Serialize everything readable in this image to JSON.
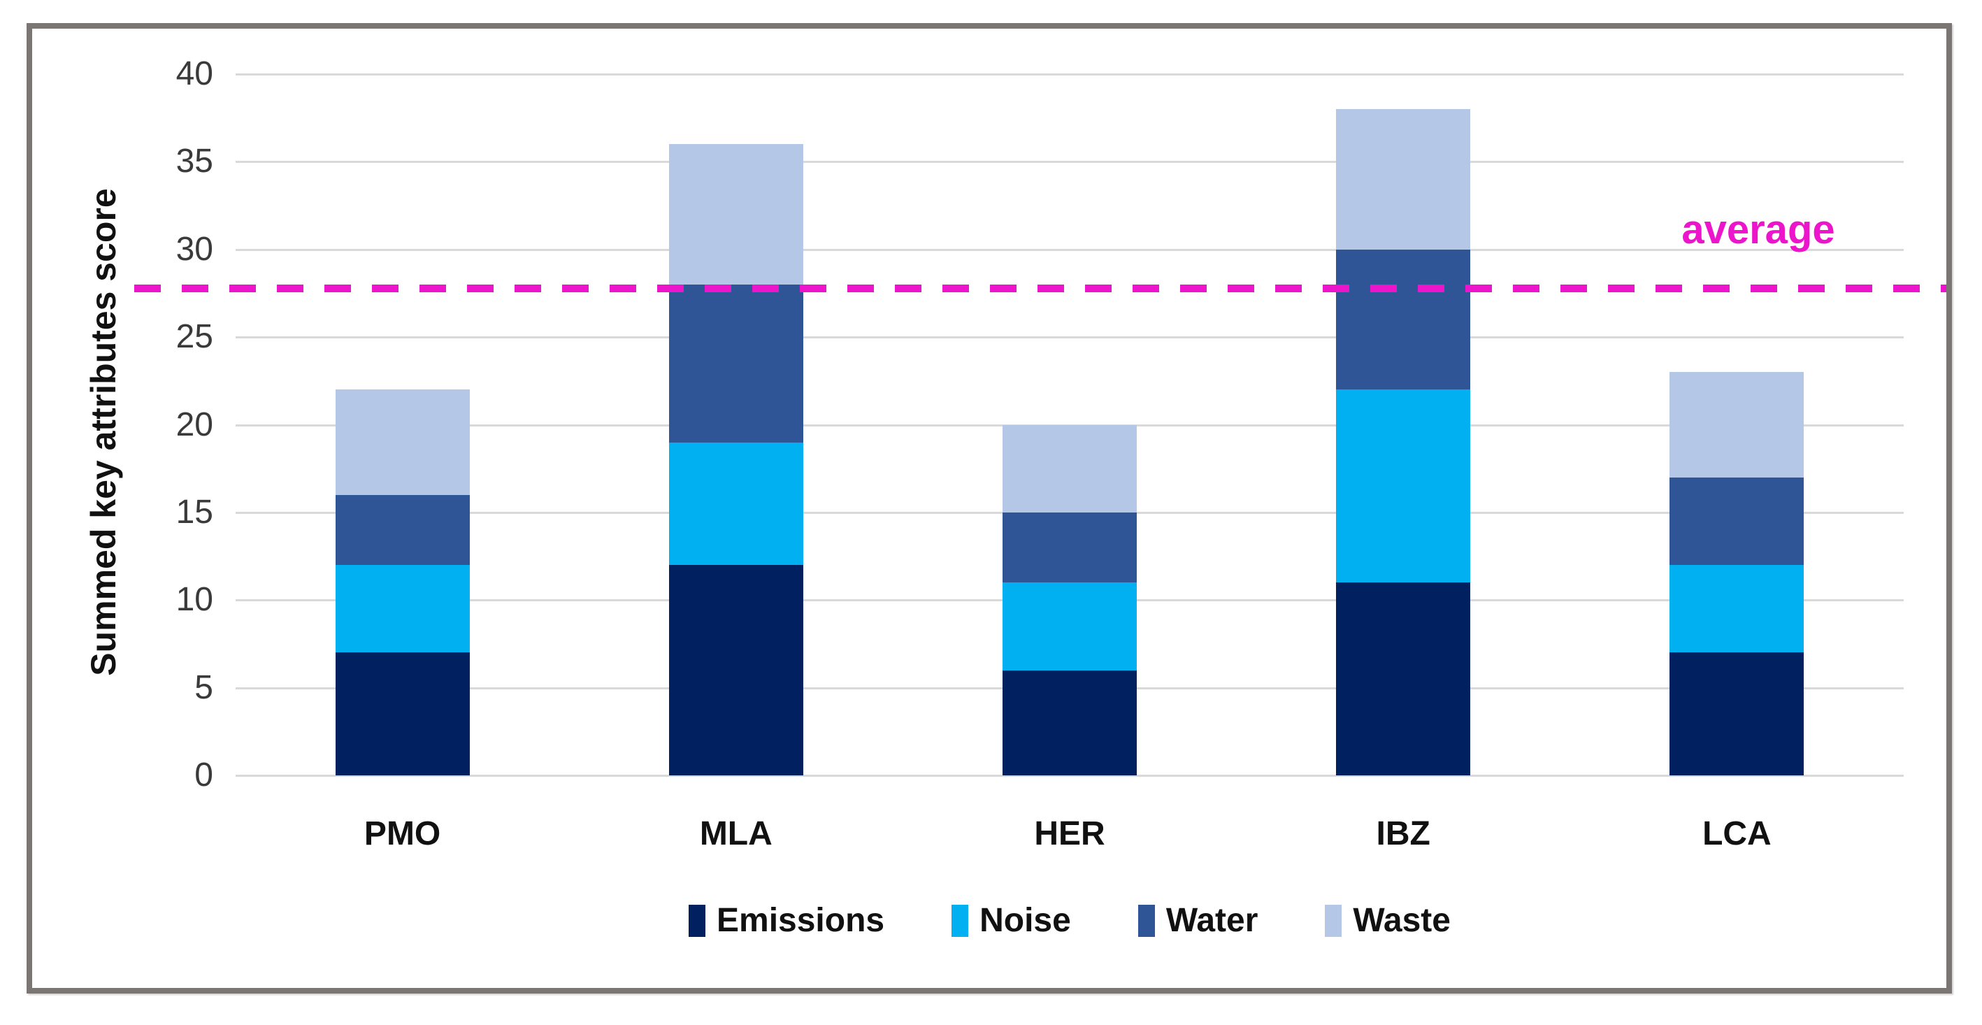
{
  "chart_data": {
    "type": "bar",
    "stacked": true,
    "categories": [
      "PMO",
      "MLA",
      "HER",
      "IBZ",
      "LCA"
    ],
    "series": [
      {
        "name": "Emissions",
        "color": "#002060",
        "values": [
          7,
          12,
          6,
          11,
          7
        ]
      },
      {
        "name": "Noise",
        "color": "#00B0F0",
        "values": [
          5,
          7,
          5,
          11,
          5
        ]
      },
      {
        "name": "Water",
        "color": "#2F5597",
        "values": [
          4,
          9,
          4,
          8,
          5
        ]
      },
      {
        "name": "Waste",
        "color": "#B4C7E7",
        "values": [
          6,
          8,
          5,
          8,
          6
        ]
      }
    ],
    "totals": [
      22,
      36,
      20,
      38,
      23
    ],
    "ylabel": "Summed key attributes score",
    "yticks": [
      0,
      5,
      10,
      15,
      20,
      25,
      30,
      35,
      40
    ],
    "ylim": [
      0,
      40
    ],
    "grid": "horizontal",
    "gridline_color": "#d9d9d9",
    "legend_position": "bottom",
    "average_line": {
      "label": "average",
      "value": 27.8,
      "color": "#EC15CB",
      "style": "dashed"
    },
    "frame_border_color": "#7b7674"
  }
}
